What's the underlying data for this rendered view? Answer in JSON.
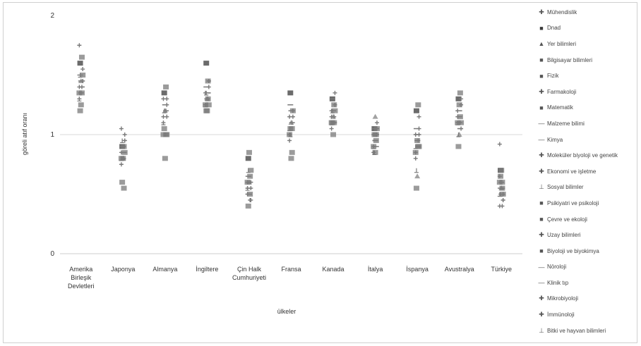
{
  "chart_data": {
    "type": "scatter",
    "title": "",
    "xlabel": "ülkeler",
    "ylabel": "göreli atıf oranı",
    "ylim": [
      0,
      2
    ],
    "yticks": [
      "0",
      "1",
      "2"
    ],
    "grid": "horizontal at 1",
    "legend": "right",
    "categories": [
      "Amerika Birleşik Devletleri",
      "Japonya",
      "Almanya",
      "İngiltere",
      "Çin Halk Cumhuriyeti",
      "Fransa",
      "Kanada",
      "İtalya",
      "İspanya",
      "Avustralya",
      "Türkiye"
    ],
    "category_lines": [
      [
        "Amerika",
        "Birleşik",
        "Devletleri"
      ],
      [
        "Japonya"
      ],
      [
        "Almanya"
      ],
      [
        "İngiltere"
      ],
      [
        "Çin Halk",
        "Cumhuriyeti"
      ],
      [
        "Fransa"
      ],
      [
        "Kanada"
      ],
      [
        "İtalya"
      ],
      [
        "İspanya"
      ],
      [
        "Avustralya"
      ],
      [
        "Türkiye"
      ]
    ],
    "series": [
      {
        "name": "Mühendislik",
        "marker": "✚",
        "values": [
          1.75,
          0.85,
          1.1,
          1.35,
          0.55,
          1.15,
          1.2,
          1.0,
          1.0,
          1.1,
          0.92
        ]
      },
      {
        "name": "Dnad",
        "marker": "■",
        "values": [
          1.6,
          0.9,
          1.35,
          1.6,
          0.8,
          1.35,
          1.3,
          1.05,
          1.2,
          1.3,
          0.7
        ]
      },
      {
        "name": "Yer bilimleri",
        "marker": "▲",
        "values": [
          1.45,
          0.8,
          1.2,
          1.3,
          0.6,
          1.1,
          1.15,
          1.15,
          0.65,
          1.0,
          0.55
        ]
      },
      {
        "name": "Bilgisayar bilimleri",
        "marker": "■",
        "values": [
          1.65,
          0.55,
          1.4,
          1.45,
          0.65,
          0.85,
          1.25,
          0.95,
          1.25,
          1.35,
          0.6
        ]
      },
      {
        "name": "Fizik",
        "marker": "■",
        "values": [
          1.5,
          0.85,
          1.0,
          1.25,
          0.7,
          1.2,
          1.2,
          1.05,
          0.9,
          1.1,
          0.5
        ]
      },
      {
        "name": "Farmakoloji",
        "marker": "✚",
        "values": [
          1.4,
          0.75,
          1.15,
          1.25,
          0.5,
          1.0,
          1.05,
          0.9,
          0.85,
          1.15,
          0.4
        ]
      },
      {
        "name": "Matematik",
        "marker": "■",
        "values": [
          1.2,
          0.6,
          1.05,
          1.2,
          0.4,
          1.05,
          1.1,
          1.0,
          0.55,
          0.9,
          0.65
        ]
      },
      {
        "name": "Malzeme bilimi",
        "marker": "—",
        "values": [
          1.35,
          0.9,
          1.25,
          1.3,
          0.55,
          1.2,
          1.15,
          0.95,
          0.95,
          1.2,
          0.6
        ]
      },
      {
        "name": "Kimya",
        "marker": "—",
        "values": [
          1.4,
          0.85,
          1.2,
          1.35,
          0.6,
          1.1,
          1.1,
          0.9,
          0.9,
          1.05,
          0.55
        ]
      },
      {
        "name": "Moleküler biyoloji ve genetik",
        "marker": "✚",
        "values": [
          1.45,
          0.95,
          1.15,
          1.4,
          0.45,
          1.15,
          1.25,
          1.0,
          1.15,
          1.05,
          0.45
        ]
      },
      {
        "name": "Ekonomi ve işletme",
        "marker": "✚",
        "values": [
          1.3,
          1.05,
          1.3,
          1.25,
          0.6,
          0.95,
          1.15,
          0.85,
          0.8,
          1.2,
          0.65
        ]
      },
      {
        "name": "Sosyal bilimler",
        "marker": "⊥",
        "values": [
          1.5,
          0.95,
          1.2,
          1.35,
          0.7,
          1.0,
          1.2,
          0.85,
          0.7,
          1.0,
          0.5
        ]
      },
      {
        "name": "Psikiyatri ve psikoloji",
        "marker": "■",
        "values": [
          1.25,
          0.8,
          0.8,
          1.2,
          0.85,
          0.8,
          1.0,
          0.85,
          0.95,
          1.25,
          0.7
        ]
      },
      {
        "name": "Çevre ve ekoloji",
        "marker": "■",
        "values": [
          1.35,
          0.9,
          1.0,
          1.3,
          0.5,
          1.05,
          1.1,
          1.0,
          0.9,
          1.15,
          0.55
        ]
      },
      {
        "name": "Uzay bilimleri",
        "marker": "✚",
        "values": [
          1.45,
          1.0,
          1.25,
          1.45,
          0.55,
          1.2,
          1.35,
          1.1,
          1.0,
          1.3,
          0.5
        ]
      },
      {
        "name": "Biyoloji ve biyokimya",
        "marker": "■",
        "values": [
          1.35,
          0.8,
          1.0,
          1.25,
          0.6,
          1.0,
          1.1,
          0.9,
          0.85,
          1.1,
          0.6
        ]
      },
      {
        "name": "Nöroloji",
        "marker": "—",
        "values": [
          1.5,
          0.9,
          1.3,
          1.4,
          0.65,
          1.25,
          1.3,
          1.05,
          1.05,
          1.2,
          0.55
        ]
      },
      {
        "name": "Klinik tıp",
        "marker": "—",
        "values": [
          1.45,
          0.85,
          1.25,
          1.35,
          0.5,
          1.15,
          1.2,
          0.95,
          1.0,
          1.15,
          0.5
        ]
      },
      {
        "name": "Mikrobiyoloji",
        "marker": "✚",
        "values": [
          1.4,
          0.8,
          1.2,
          1.3,
          0.45,
          1.1,
          1.15,
          1.0,
          0.95,
          1.1,
          0.4
        ]
      },
      {
        "name": "İmmünoloji",
        "marker": "✚",
        "values": [
          1.55,
          0.95,
          1.3,
          1.45,
          0.6,
          1.2,
          1.25,
          1.05,
          1.05,
          1.25,
          0.45
        ]
      },
      {
        "name": "Bitki ve hayvan bilimleri",
        "marker": "⊥",
        "values": [
          1.3,
          0.8,
          1.1,
          1.25,
          0.55,
          1.05,
          1.1,
          0.9,
          0.9,
          1.1,
          0.5
        ]
      }
    ],
    "colors": {
      "marker": "#7a7a7a",
      "marker_dark": "#3a3a3a",
      "gridline": "#d9d9d9",
      "axis": "#cccccc"
    }
  }
}
